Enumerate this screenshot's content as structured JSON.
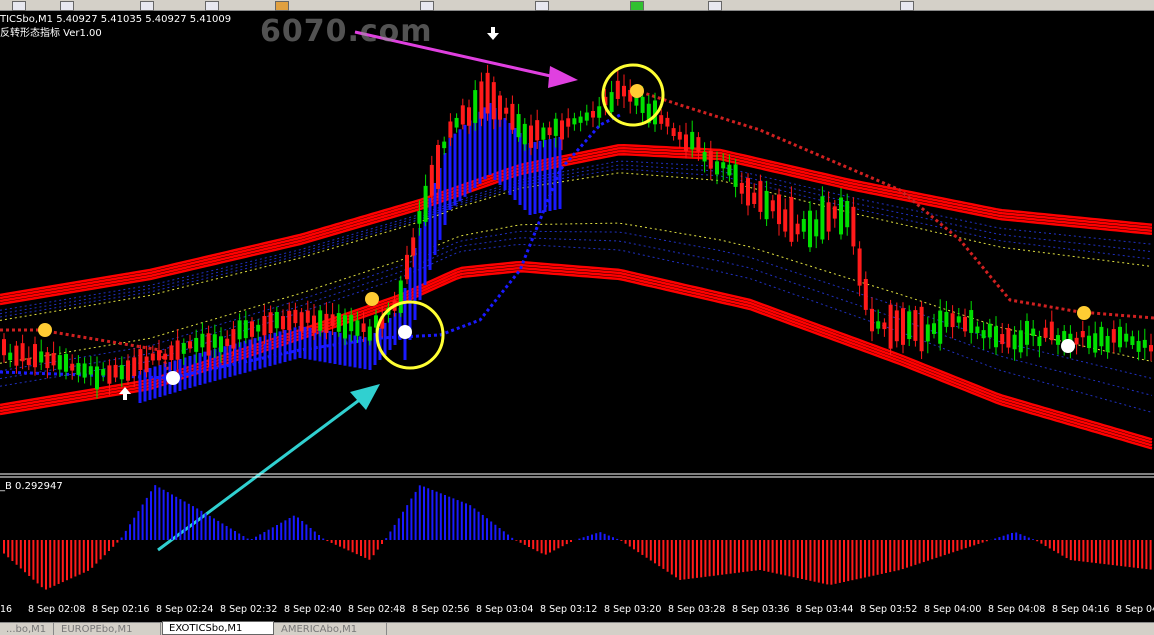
{
  "window": {
    "symbol_line": "TICSbo,M1  5.40927 5.41035 5.40927 5.41009",
    "indicator_name": "反转形态指标 Ver1.00",
    "watermark": "6070.com",
    "sub_indicator_label": "_B 0.292947"
  },
  "colors": {
    "background": "#000000",
    "bull_candle": "#00e000",
    "bear_candle": "#ff1a1a",
    "band": "#ff0000",
    "blue_line": "#1a1aff",
    "signal_circle": "#ffff33",
    "arrow_magenta": "#e040e0",
    "arrow_cyan": "#30d0d0"
  },
  "xaxis": {
    "labels": [
      "16",
      "8 Sep 02:08",
      "8 Sep 02:16",
      "8 Sep 02:24",
      "8 Sep 02:32",
      "8 Sep 02:40",
      "8 Sep 02:48",
      "8 Sep 02:56",
      "8 Sep 03:04",
      "8 Sep 03:12",
      "8 Sep 03:20",
      "8 Sep 03:28",
      "8 Sep 03:36",
      "8 Sep 03:44",
      "8 Sep 03:52",
      "8 Sep 04:00",
      "8 Sep 04:08",
      "8 Sep 04:16",
      "8 Sep 04"
    ]
  },
  "tabs": [
    {
      "label": "...bo,M1",
      "active": false
    },
    {
      "label": "EUROPEbo,M1",
      "active": false
    },
    {
      "label": "EXOTICSbo,M1",
      "active": true
    },
    {
      "label": "AMERICAbo,M1",
      "active": false
    }
  ],
  "icons": {
    "signal_buy": "arrow-up-icon",
    "signal_sell": "arrow-down-icon"
  }
}
